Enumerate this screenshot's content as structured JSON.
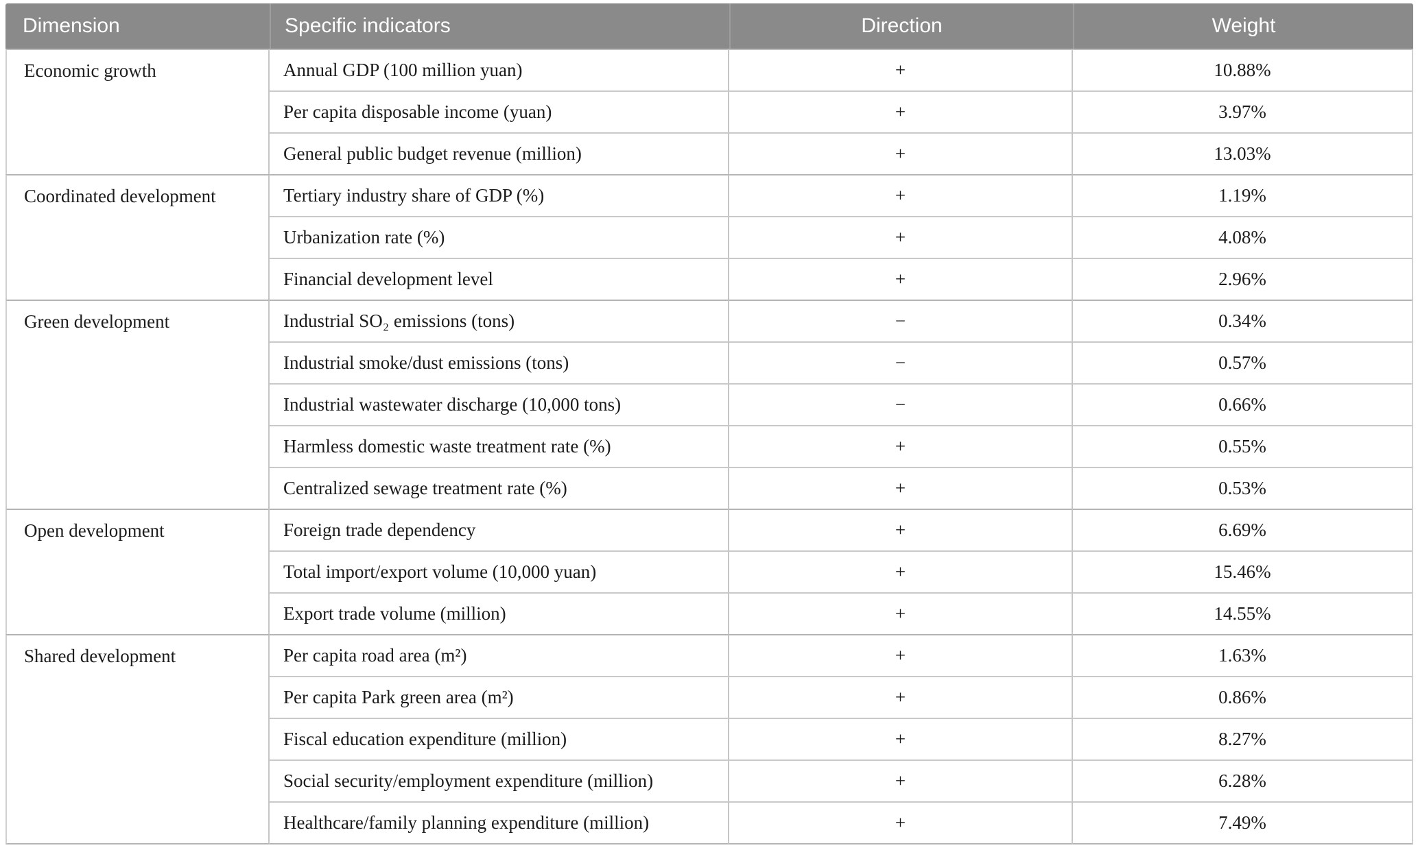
{
  "table": {
    "columns": [
      {
        "label": "Dimension"
      },
      {
        "label": "Specific indicators"
      },
      {
        "label": "Direction"
      },
      {
        "label": "Weight"
      }
    ],
    "colors": {
      "header_bg": "#8a8a8a",
      "header_text": "#ffffff",
      "body_text": "#1c1c1c",
      "row_line": "#c9c9c9",
      "group_line": "#b4b4b4"
    },
    "groups": [
      {
        "dimension": "Economic growth",
        "rows": [
          {
            "indicator": "Annual GDP (100 million yuan)",
            "direction": "+",
            "weight": "10.88%"
          },
          {
            "indicator": "Per capita disposable income (yuan)",
            "direction": "+",
            "weight": "3.97%"
          },
          {
            "indicator": "General public budget revenue (million)",
            "direction": "+",
            "weight": "13.03%"
          }
        ]
      },
      {
        "dimension": "Coordinated development",
        "rows": [
          {
            "indicator": "Tertiary industry share of GDP (%)",
            "direction": "+",
            "weight": "1.19%"
          },
          {
            "indicator": "Urbanization rate (%)",
            "direction": "+",
            "weight": "4.08%"
          },
          {
            "indicator": "Financial development level",
            "direction": "+",
            "weight": "2.96%"
          }
        ]
      },
      {
        "dimension": "Green development",
        "rows": [
          {
            "indicator": "Industrial SO₂ emissions (tons)",
            "direction": "−",
            "weight": "0.34%"
          },
          {
            "indicator": "Industrial smoke/dust emissions (tons)",
            "direction": "−",
            "weight": "0.57%"
          },
          {
            "indicator": "Industrial wastewater discharge (10,000 tons)",
            "direction": "−",
            "weight": "0.66%"
          },
          {
            "indicator": "Harmless domestic waste treatment rate (%)",
            "direction": "+",
            "weight": "0.55%"
          },
          {
            "indicator": "Centralized sewage treatment rate (%)",
            "direction": "+",
            "weight": "0.53%"
          }
        ]
      },
      {
        "dimension": "Open development",
        "rows": [
          {
            "indicator": "Foreign trade dependency",
            "direction": "+",
            "weight": "6.69%"
          },
          {
            "indicator": "Total import/export volume (10,000 yuan)",
            "direction": "+",
            "weight": "15.46%"
          },
          {
            "indicator": "Export trade volume (million)",
            "direction": "+",
            "weight": "14.55%"
          }
        ]
      },
      {
        "dimension": "Shared development",
        "rows": [
          {
            "indicator": "Per capita road area (m²)",
            "direction": "+",
            "weight": "1.63%"
          },
          {
            "indicator": "Per capita Park green area (m²)",
            "direction": "+",
            "weight": "0.86%"
          },
          {
            "indicator": "Fiscal education expenditure (million)",
            "direction": "+",
            "weight": "8.27%"
          },
          {
            "indicator": "Social security/employment expenditure (million)",
            "direction": "+",
            "weight": "6.28%"
          },
          {
            "indicator": "Healthcare/family planning expenditure (million)",
            "direction": "+",
            "weight": "7.49%"
          }
        ]
      }
    ]
  }
}
